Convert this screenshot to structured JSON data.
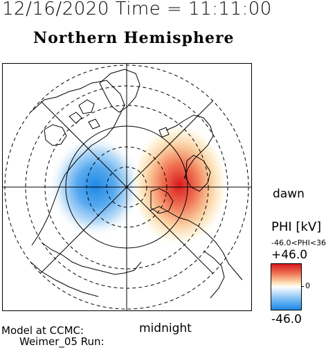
{
  "header": {
    "datetime": "12/16/2020 Time = 11:11:00",
    "title": "Northern Hemisphere"
  },
  "map": {
    "orientation_labels": {
      "dawn": "dawn",
      "midnight": "midnight"
    }
  },
  "footer": {
    "model_line": "Model at CCMC:",
    "run_line": "Weimer_05 Run:"
  },
  "legend": {
    "title": "PHI [kV]",
    "range_text": "-46.0<PHI<36",
    "max_label": "+46.0",
    "zero_label": "0",
    "min_label": "-46.0",
    "colors": {
      "positive": "#d7191c",
      "neutral": "#ffffff",
      "negative": "#1e88e5"
    }
  }
}
